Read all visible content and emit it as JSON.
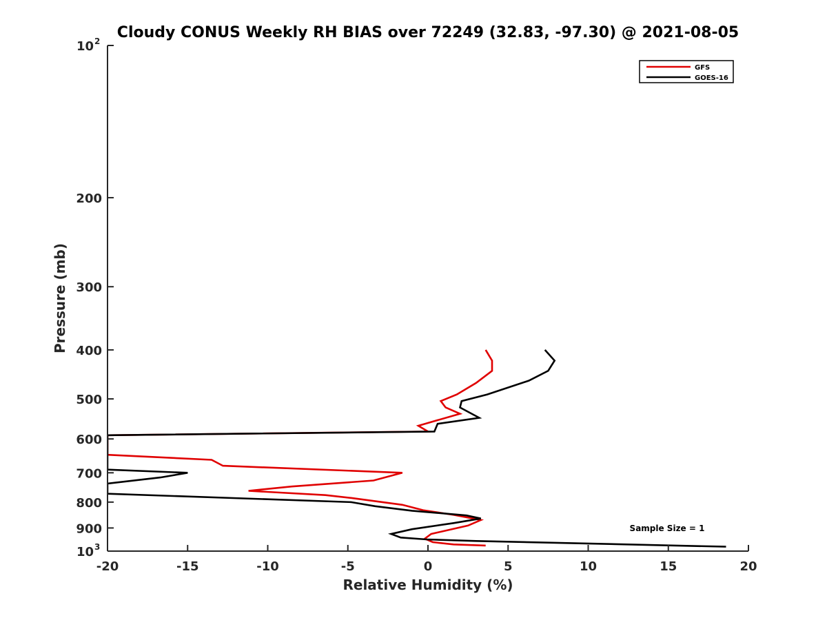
{
  "chart_data": {
    "type": "line",
    "title": "Cloudy CONUS Weekly RH BIAS over 72249 (32.83, -97.30) @ 2021-08-05",
    "xlabel": "Relative Humidity (%)",
    "ylabel": "Pressure (mb)",
    "xlim": [
      -20,
      20
    ],
    "ylim": [
      100,
      1000
    ],
    "y_scale": "log",
    "y_reversed": true,
    "grid": false,
    "legend_position": "top-right",
    "x_ticks": [
      "-20",
      "-15",
      "-10",
      "-5",
      "0",
      "5",
      "10",
      "15",
      "20"
    ],
    "x_tick_values": [
      -20,
      -15,
      -10,
      -5,
      0,
      5,
      10,
      15,
      20
    ],
    "y_ticks": [
      {
        "value": 100,
        "base": "10",
        "exp": "2"
      },
      {
        "value": 200,
        "base": "200",
        "exp": ""
      },
      {
        "value": 300,
        "base": "300",
        "exp": ""
      },
      {
        "value": 400,
        "base": "400",
        "exp": ""
      },
      {
        "value": 500,
        "base": "500",
        "exp": ""
      },
      {
        "value": 600,
        "base": "600",
        "exp": ""
      },
      {
        "value": 700,
        "base": "700",
        "exp": ""
      },
      {
        "value": 800,
        "base": "800",
        "exp": ""
      },
      {
        "value": 900,
        "base": "900",
        "exp": ""
      },
      {
        "value": 1000,
        "base": "10",
        "exp": "3"
      }
    ],
    "annotation": "Sample Size = 1",
    "series": [
      {
        "name": "GFS",
        "color": "#e00000",
        "points": [
          [
            3.6,
            400
          ],
          [
            4.0,
            420
          ],
          [
            4.0,
            440
          ],
          [
            3.0,
            465
          ],
          [
            1.8,
            490
          ],
          [
            0.8,
            505
          ],
          [
            1.1,
            520
          ],
          [
            2.0,
            535
          ],
          [
            -0.6,
            565
          ],
          [
            0.0,
            580
          ],
          [
            -20.0,
            590
          ],
          [
            -20.0,
            645
          ],
          [
            -13.5,
            660
          ],
          [
            -12.8,
            678
          ],
          [
            -1.6,
            700
          ],
          [
            -3.4,
            725
          ],
          [
            -8.5,
            745
          ],
          [
            -11.2,
            760
          ],
          [
            -6.4,
            775
          ],
          [
            -4.8,
            785
          ],
          [
            -1.6,
            810
          ],
          [
            -0.3,
            830
          ],
          [
            1.6,
            848
          ],
          [
            3.3,
            868
          ],
          [
            2.5,
            890
          ],
          [
            0.2,
            925
          ],
          [
            -0.2,
            945
          ],
          [
            0.3,
            960
          ],
          [
            1.6,
            970
          ],
          [
            3.6,
            975
          ]
        ]
      },
      {
        "name": "GOES-16",
        "color": "#000000",
        "points": [
          [
            7.3,
            400
          ],
          [
            7.9,
            420
          ],
          [
            7.5,
            440
          ],
          [
            6.3,
            460
          ],
          [
            3.7,
            490
          ],
          [
            2.1,
            505
          ],
          [
            2.0,
            520
          ],
          [
            3.2,
            545
          ],
          [
            0.6,
            560
          ],
          [
            0.4,
            580
          ],
          [
            -20.0,
            590
          ],
          [
            -20.0,
            690
          ],
          [
            -15.0,
            700
          ],
          [
            -16.7,
            715
          ],
          [
            -20.0,
            735
          ],
          [
            -20.0,
            770
          ],
          [
            -4.8,
            800
          ],
          [
            -3.3,
            815
          ],
          [
            -1.0,
            832
          ],
          [
            2.4,
            850
          ],
          [
            3.3,
            862
          ],
          [
            1.6,
            880
          ],
          [
            -1.0,
            905
          ],
          [
            -2.3,
            925
          ],
          [
            -1.7,
            940
          ],
          [
            -0.1,
            948
          ],
          [
            3.0,
            955
          ],
          [
            18.6,
            980
          ]
        ]
      }
    ]
  }
}
